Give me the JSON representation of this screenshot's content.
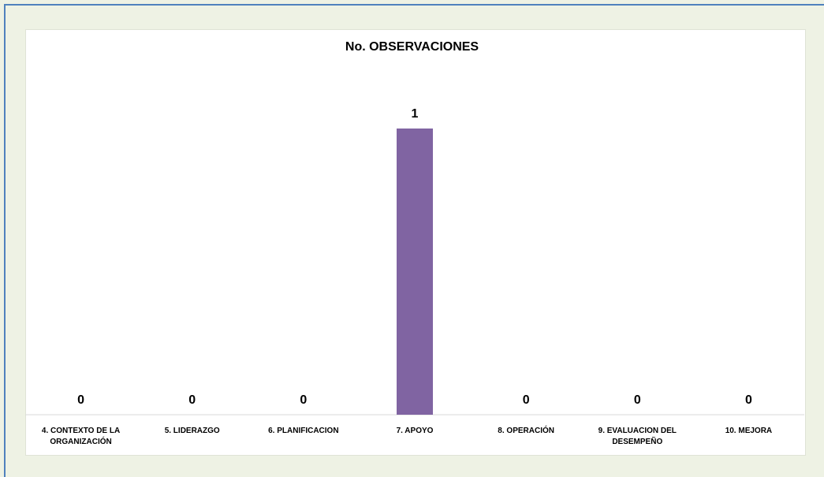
{
  "chart_data": {
    "type": "bar",
    "title": "No. OBSERVACIONES",
    "xlabel": "",
    "ylabel": "",
    "categories": [
      "4. CONTEXTO DE LA ORGANIZACIÓN",
      "5. LIDERAZGO",
      "6. PLANIFICACION",
      "7. APOYO",
      "8. OPERACIÓN",
      "9. EVALUACION DEL DESEMPEÑO",
      "10. MEJORA"
    ],
    "values": [
      0,
      0,
      0,
      1,
      0,
      0,
      0
    ],
    "data_labels": [
      "0",
      "0",
      "0",
      "1",
      "0",
      "0",
      "0"
    ],
    "ylim": [
      0,
      1.1
    ],
    "grid": false,
    "legend": "none",
    "bar_color": "#8064a2"
  }
}
